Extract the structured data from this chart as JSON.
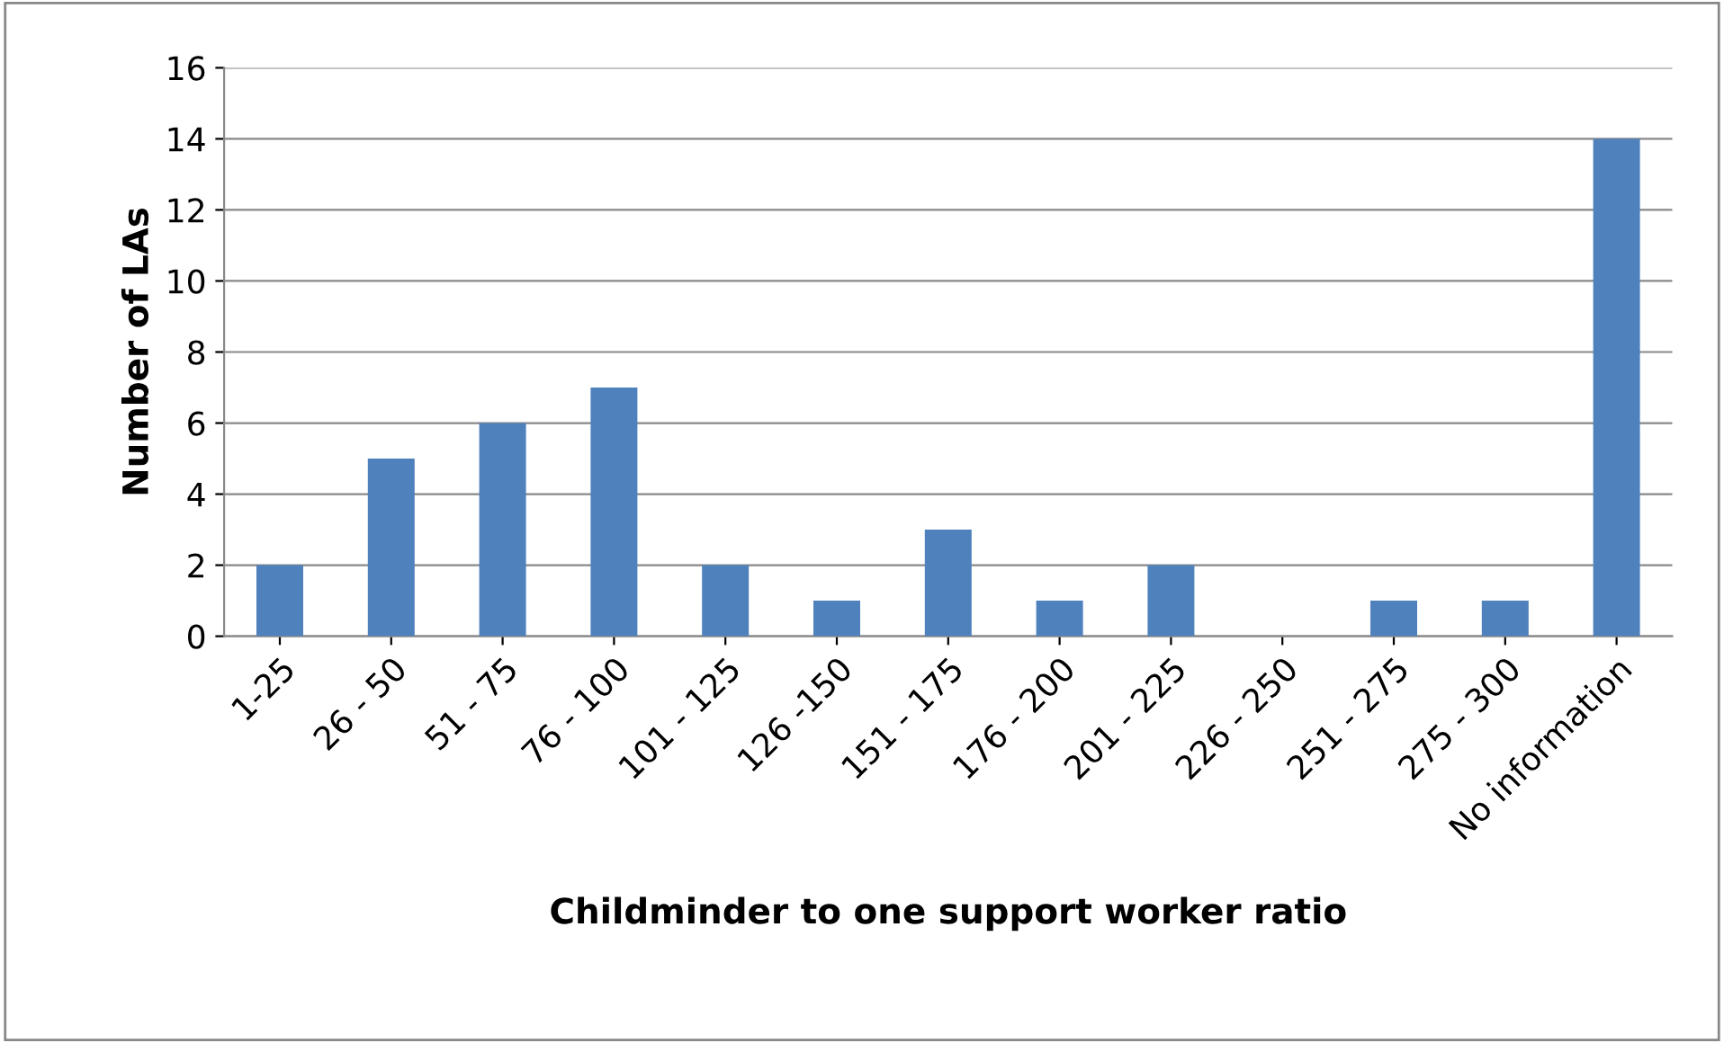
{
  "chart_data": {
    "type": "bar",
    "xlabel": "Childminder to one support worker ratio",
    "ylabel": "Number of LAs",
    "categories": [
      "1-25",
      "26 - 50",
      "51 - 75",
      "76 - 100",
      "101 - 125",
      "126 -150",
      "151 - 175",
      "176 - 200",
      "201 - 225",
      "226 - 250",
      "251 - 275",
      "275 - 300",
      "No information"
    ],
    "values": [
      2,
      5,
      6,
      7,
      2,
      1,
      3,
      1,
      2,
      0,
      1,
      1,
      14
    ],
    "color": "#4f81bd",
    "ylim": [
      0,
      16
    ],
    "yticks": [
      0,
      2,
      4,
      6,
      8,
      10,
      12,
      14,
      16
    ],
    "grid": "y",
    "legend": false
  }
}
